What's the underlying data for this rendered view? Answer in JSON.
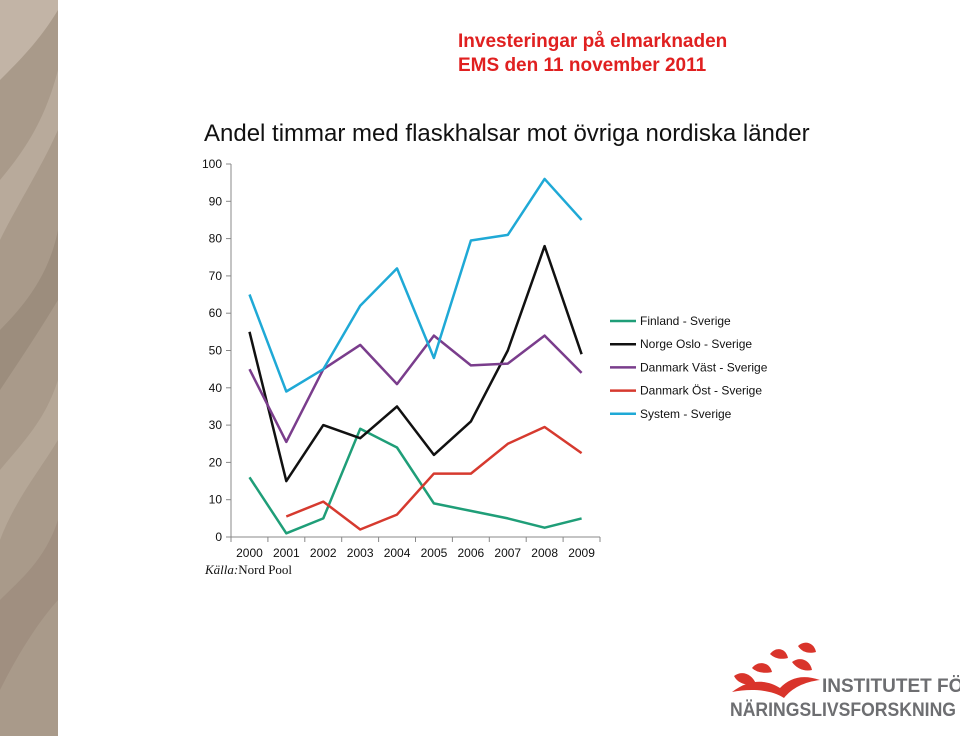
{
  "header": {
    "line1": "Investeringar på elmarknaden",
    "line2": "EMS den 11 november 2011"
  },
  "slide_title": "Andel timmar med flaskhalsar mot övriga nordiska länder",
  "source": {
    "label": "Källa:",
    "value": "Nord Pool"
  },
  "logo": {
    "line1": "INSTITUTET FÖR",
    "line2": "NÄRINGSLIVSFORSKNING"
  },
  "colors": {
    "header_red": "#e02020",
    "logo_red": "#d9342b",
    "logo_gray": "#6d6e71",
    "side_band": "#a99a8a"
  },
  "chart_data": {
    "type": "line",
    "title": "Andel timmar med flaskhalsar mot övriga nordiska länder",
    "xlabel": "",
    "ylabel": "",
    "categories": [
      "2000",
      "2001",
      "2002",
      "2003",
      "2004",
      "2005",
      "2006",
      "2007",
      "2008",
      "2009"
    ],
    "ylim": [
      0,
      100
    ],
    "yticks": [
      0,
      10,
      20,
      30,
      40,
      50,
      60,
      70,
      80,
      90,
      100
    ],
    "grid": false,
    "legend_position": "right",
    "series": [
      {
        "name": "Finland - Sverige",
        "color": "#1f9e78",
        "values": [
          16,
          1,
          5,
          29,
          24,
          9,
          7,
          5,
          2.5,
          5
        ]
      },
      {
        "name": "Norge Oslo - Sverige",
        "color": "#111111",
        "values": [
          55,
          15,
          30,
          26.5,
          35,
          22,
          31,
          50,
          78,
          49
        ]
      },
      {
        "name": "Danmark Väst - Sverige",
        "color": "#7a3d8c",
        "values": [
          45,
          25.5,
          45,
          51.5,
          41,
          54,
          46,
          46.5,
          54,
          44
        ]
      },
      {
        "name": "Danmark Öst - Sverige",
        "color": "#d63a2f",
        "values": [
          null,
          5.5,
          9.5,
          2,
          6,
          17,
          17,
          25,
          29.5,
          22.5
        ]
      },
      {
        "name": "System - Sverige",
        "color": "#1fa9d6",
        "values": [
          65,
          39,
          45,
          62,
          72,
          48,
          79.5,
          81,
          96,
          85
        ]
      }
    ]
  }
}
